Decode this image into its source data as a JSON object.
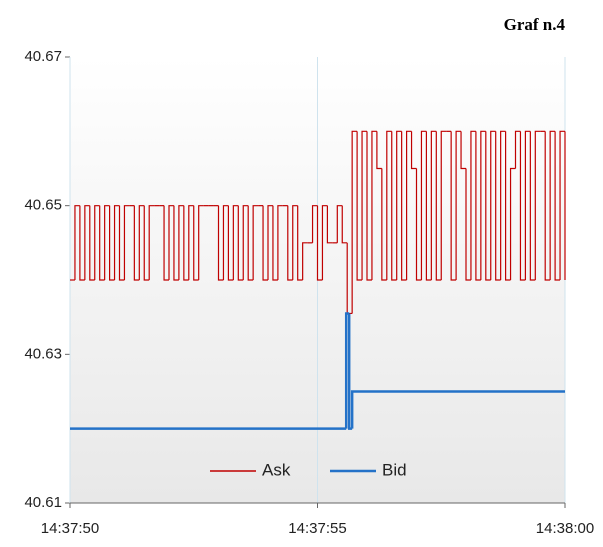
{
  "chart_data": {
    "type": "line",
    "title": "Graf n.4",
    "step": true,
    "legend": "bottom",
    "xlim": [
      0,
      10
    ],
    "xticks": [
      {
        "value": 0,
        "label": "14:37:50"
      },
      {
        "value": 5,
        "label": "14:37:55"
      },
      {
        "value": 10,
        "label": "14:38:00"
      }
    ],
    "ylim": [
      40.61,
      40.67
    ],
    "yticks": [
      40.61,
      40.63,
      40.65,
      40.67
    ],
    "grid": "x",
    "series": [
      {
        "name": "Ask",
        "color": "#c00000",
        "x": [
          0,
          0.1,
          0.2,
          0.3,
          0.4,
          0.5,
          0.6,
          0.7,
          0.8,
          0.9,
          1,
          1.1,
          1.2,
          1.3,
          1.4,
          1.5,
          1.6,
          1.7,
          1.8,
          1.9,
          2,
          2.1,
          2.2,
          2.3,
          2.4,
          2.5,
          2.6,
          2.7,
          2.8,
          2.9,
          3,
          3.1,
          3.2,
          3.3,
          3.4,
          3.5,
          3.6,
          3.7,
          3.8,
          3.9,
          4,
          4.1,
          4.2,
          4.3,
          4.4,
          4.5,
          4.6,
          4.7,
          4.8,
          4.9,
          5,
          5.1,
          5.2,
          5.3,
          5.4,
          5.5,
          5.6,
          5.7,
          5.8,
          5.9,
          6,
          6.1,
          6.2,
          6.3,
          6.4,
          6.5,
          6.6,
          6.7,
          6.8,
          6.9,
          7,
          7.1,
          7.2,
          7.3,
          7.4,
          7.5,
          7.6,
          7.7,
          7.8,
          7.9,
          8,
          8.1,
          8.2,
          8.3,
          8.4,
          8.5,
          8.6,
          8.7,
          8.8,
          8.9,
          9,
          9.1,
          9.2,
          9.3,
          9.4,
          9.5,
          9.6,
          9.7,
          9.8,
          9.9,
          10
        ],
        "values": [
          40.64,
          40.65,
          40.64,
          40.65,
          40.64,
          40.65,
          40.64,
          40.65,
          40.64,
          40.65,
          40.64,
          40.65,
          40.65,
          40.64,
          40.65,
          40.64,
          40.65,
          40.65,
          40.65,
          40.64,
          40.65,
          40.64,
          40.65,
          40.64,
          40.65,
          40.64,
          40.65,
          40.65,
          40.65,
          40.65,
          40.64,
          40.65,
          40.64,
          40.65,
          40.64,
          40.65,
          40.64,
          40.65,
          40.65,
          40.64,
          40.65,
          40.64,
          40.65,
          40.65,
          40.64,
          40.65,
          40.64,
          40.645,
          40.645,
          40.65,
          40.64,
          40.65,
          40.645,
          40.645,
          40.65,
          40.645,
          40.6355,
          40.66,
          40.64,
          40.66,
          40.64,
          40.66,
          40.655,
          40.64,
          40.66,
          40.64,
          40.66,
          40.64,
          40.66,
          40.655,
          40.64,
          40.66,
          40.64,
          40.66,
          40.64,
          40.66,
          40.66,
          40.64,
          40.66,
          40.655,
          40.64,
          40.66,
          40.64,
          40.66,
          40.64,
          40.66,
          40.64,
          40.66,
          40.64,
          40.655,
          40.66,
          40.64,
          40.66,
          40.64,
          40.66,
          40.66,
          40.64,
          40.66,
          40.64,
          40.66,
          40.64
        ]
      },
      {
        "name": "Bid",
        "color": "#2472c8",
        "x": [
          0,
          5.58,
          5.64,
          5.7,
          10
        ],
        "values": [
          40.62,
          40.6355,
          40.62,
          40.625,
          40.625
        ]
      }
    ]
  }
}
